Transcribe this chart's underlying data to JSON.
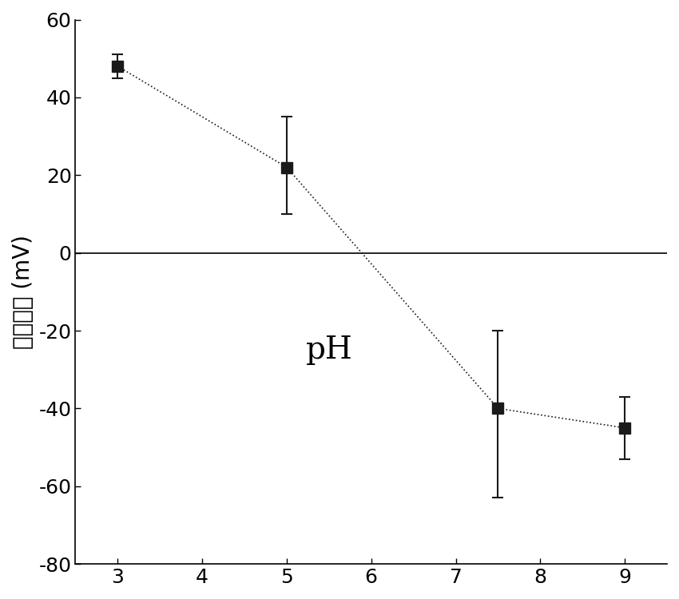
{
  "x": [
    3,
    5,
    7.5,
    9
  ],
  "y": [
    48,
    22,
    -40,
    -45
  ],
  "yerr_upper": [
    3,
    13,
    20,
    8
  ],
  "yerr_lower": [
    3,
    12,
    23,
    8
  ],
  "pH_label": "pH",
  "pH_x": 5.5,
  "pH_y": -25,
  "ylabel": "表面电位（mV）",
  "ylabel_plain": "表面电位 (mV)",
  "xlim": [
    2.5,
    9.5
  ],
  "ylim": [
    -80,
    60
  ],
  "yticks": [
    -80,
    -60,
    -40,
    -20,
    0,
    20,
    40,
    60
  ],
  "xticks": [
    3,
    4,
    5,
    6,
    7,
    8,
    9
  ],
  "marker_color": "#1a1a1a",
  "line_color": "#1a1a1a",
  "background_color": "#ffffff",
  "marker_size": 10,
  "line_width": 1.2,
  "capsize": 5,
  "pH_fontsize": 28,
  "ylabel_fontsize": 20,
  "tick_fontsize": 18
}
